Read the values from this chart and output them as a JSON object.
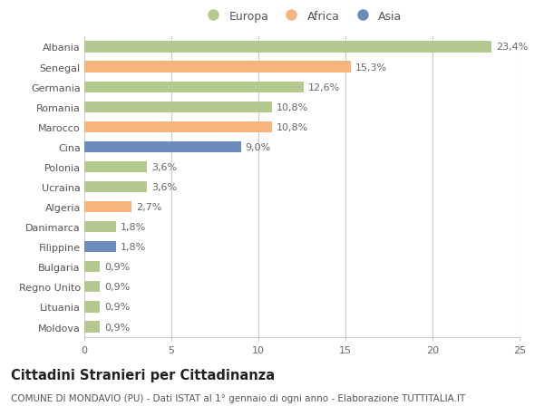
{
  "countries": [
    "Albania",
    "Senegal",
    "Germania",
    "Romania",
    "Marocco",
    "Cina",
    "Polonia",
    "Ucraina",
    "Algeria",
    "Danimarca",
    "Filippine",
    "Bulgaria",
    "Regno Unito",
    "Lituania",
    "Moldova"
  ],
  "values": [
    23.4,
    15.3,
    12.6,
    10.8,
    10.8,
    9.0,
    3.6,
    3.6,
    2.7,
    1.8,
    1.8,
    0.9,
    0.9,
    0.9,
    0.9
  ],
  "labels": [
    "23,4%",
    "15,3%",
    "12,6%",
    "10,8%",
    "10,8%",
    "9,0%",
    "3,6%",
    "3,6%",
    "2,7%",
    "1,8%",
    "1,8%",
    "0,9%",
    "0,9%",
    "0,9%",
    "0,9%"
  ],
  "continents": [
    "Europa",
    "Africa",
    "Europa",
    "Europa",
    "Africa",
    "Asia",
    "Europa",
    "Europa",
    "Africa",
    "Europa",
    "Asia",
    "Europa",
    "Europa",
    "Europa",
    "Europa"
  ],
  "colors": {
    "Europa": "#b5c98e",
    "Africa": "#f5b57d",
    "Asia": "#6b8cba"
  },
  "legend_labels": [
    "Europa",
    "Africa",
    "Asia"
  ],
  "title": "Cittadini Stranieri per Cittadinanza",
  "subtitle": "COMUNE DI MONDAVIO (PU) - Dati ISTAT al 1° gennaio di ogni anno - Elaborazione TUTTITALIA.IT",
  "xlim": [
    0,
    25
  ],
  "xticks": [
    0,
    5,
    10,
    15,
    20,
    25
  ],
  "bg_color": "#ffffff",
  "grid_color": "#cccccc",
  "bar_height": 0.55,
  "label_fontsize": 8.0,
  "ytick_fontsize": 8.0,
  "xtick_fontsize": 8.0,
  "title_fontsize": 10.5,
  "subtitle_fontsize": 7.5,
  "legend_fontsize": 9.0
}
